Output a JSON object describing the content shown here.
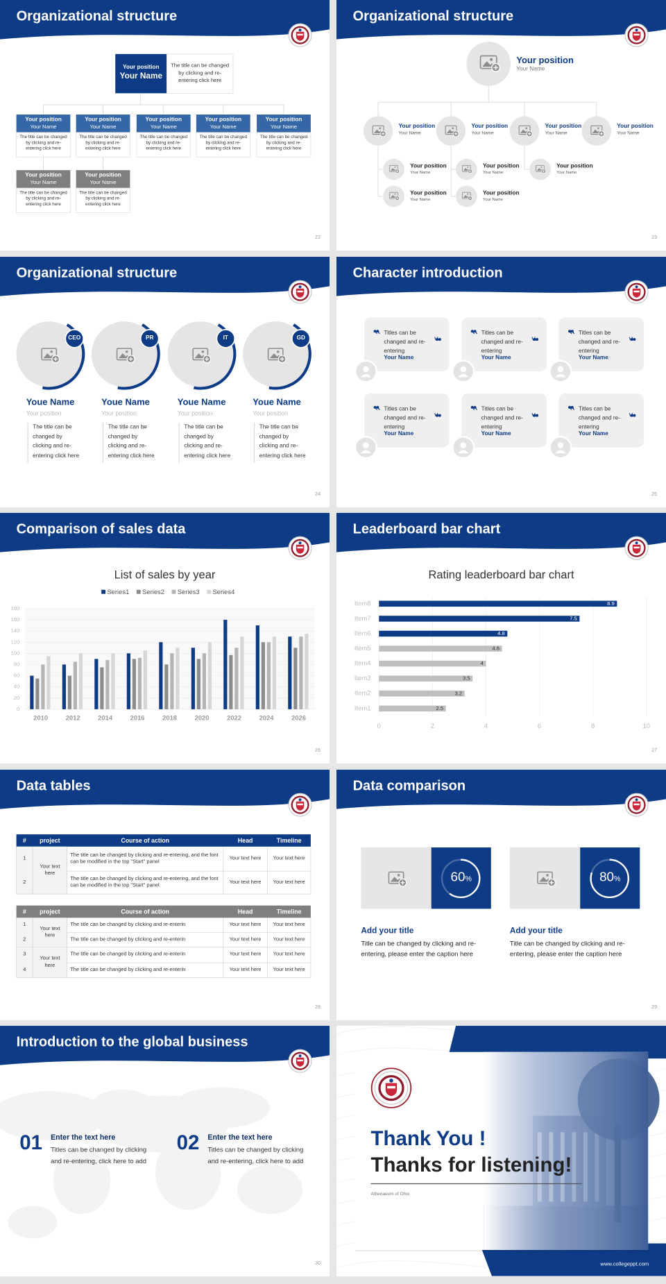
{
  "slides": [
    {
      "title": "Organizational structure",
      "page": "22",
      "head": {
        "position": "Your position",
        "name": "Your Name",
        "note": "The title can be changed by clicking and re-entering click here"
      },
      "members": [
        {
          "position": "Your position",
          "name": "Your Name",
          "text": "The title can be changed by clicking and re-entering click here"
        },
        {
          "position": "Your position",
          "name": "Your Name",
          "text": "The title can be changed by clicking and re-entering click here"
        },
        {
          "position": "Your position",
          "name": "Your Name",
          "text": "The title can be changed by clicking and re-entering click here"
        },
        {
          "position": "Your position",
          "name": "Your Name",
          "text": "The title can be changed by clicking and re-entering click here"
        },
        {
          "position": "Your position",
          "name": "Your Name",
          "text": "The title can be changed by clicking and re-entering click here"
        },
        {
          "position": "Your position",
          "name": "Your Name",
          "text": "The title can be changed by clicking and re-entering click here"
        },
        {
          "position": "Your position",
          "name": "Your Name",
          "text": "The title can be changed by clicking and re-entering click here"
        }
      ]
    },
    {
      "title": "Organizational structure",
      "page": "23",
      "head": {
        "position": "Your position",
        "name": "Your Name"
      },
      "branches": [
        {
          "position": "Your position",
          "name": "Your Name",
          "subs": [
            {
              "position": "Your position",
              "name": "Your Name"
            },
            {
              "position": "Your position",
              "name": "Your Name"
            }
          ]
        },
        {
          "position": "Your position",
          "name": "Your Name",
          "subs": [
            {
              "position": "Your position",
              "name": "Your Name"
            },
            {
              "position": "Your position",
              "name": "Your Name"
            }
          ]
        },
        {
          "position": "Your position",
          "name": "Your Name",
          "subs": [
            {
              "position": "Your position",
              "name": "Your Name"
            }
          ]
        },
        {
          "position": "Your position",
          "name": "Your Name"
        }
      ]
    },
    {
      "title": "Organizational structure",
      "page": "24",
      "people": [
        {
          "badge": "CEO",
          "name": "Youe Name",
          "position": "Your position",
          "text": "The title can be changed by clicking and re-entering click here"
        },
        {
          "badge": "PR",
          "name": "Youe Name",
          "position": "Your position",
          "text": "The title can be changed by clicking and re-entering click here"
        },
        {
          "badge": "IT",
          "name": "Youe Name",
          "position": "Your position",
          "text": "The title can be changed by clicking and re-entering click here"
        },
        {
          "badge": "GD",
          "name": "Youe Name",
          "position": "Your position",
          "text": "The title can be changed by clicking and re-entering click here"
        }
      ]
    },
    {
      "title": "Character introduction",
      "page": "25",
      "cards": [
        {
          "text": "Titles can be changed and re-entering",
          "name": "Your Name"
        },
        {
          "text": "Titles can be changed and re-entering",
          "name": "Your Name"
        },
        {
          "text": "Titles can be changed and re-entering",
          "name": "Your Name"
        },
        {
          "text": "Titles can be changed and re-entering",
          "name": "Your Name"
        },
        {
          "text": "Titles can be changed and re-entering",
          "name": "Your Name"
        },
        {
          "text": "Titles can be changed and re-entering",
          "name": "Your Name"
        }
      ]
    },
    {
      "title": "Comparison of sales data",
      "page": "26"
    },
    {
      "title": "Leaderboard bar chart",
      "page": "27"
    },
    {
      "title": "Data tables",
      "page": "28",
      "tables": [
        {
          "header": [
            "#",
            "project",
            "Course of action",
            "Head",
            "Timeline"
          ],
          "groups": [
            {
              "project": "Your text here",
              "rows": [
                {
                  "num": "1",
                  "course": "The title can be changed by clicking and re-entering, and the font can be modified in the top \"Start\" panel",
                  "head": "Your text here",
                  "timeline": "Your text here"
                },
                {
                  "num": "2",
                  "course": "The title can be changed by clicking and re-entering, and the font can be modified in the top \"Start\" panel",
                  "head": "Your text here",
                  "timeline": "Your text here"
                }
              ]
            }
          ]
        },
        {
          "header": [
            "#",
            "project",
            "Course of action",
            "Head",
            "Timeline"
          ],
          "groups": [
            {
              "project": "Your text here",
              "rows": [
                {
                  "num": "1",
                  "course": "The title can be changed by clicking and re-enterin",
                  "head": "Your text here",
                  "timeline": "Your text here"
                },
                {
                  "num": "2",
                  "course": "The title can be changed by clicking and re-enterin",
                  "head": "Your text here",
                  "timeline": "Your text here"
                }
              ]
            },
            {
              "project": "Your text here",
              "rows": [
                {
                  "num": "3",
                  "course": "The title can be changed by clicking and re-enterin",
                  "head": "Your text here",
                  "timeline": "Your text here"
                },
                {
                  "num": "4",
                  "course": "The title can be changed by clicking and re-enterin",
                  "head": "Your text here",
                  "timeline": "Your text here"
                }
              ]
            }
          ]
        }
      ]
    },
    {
      "title": "Data comparison",
      "page": "29",
      "items": [
        {
          "percent": 60,
          "unit": "%",
          "title": "Add your title",
          "text": "Title can be changed by clicking and re-entering, please enter the caption here"
        },
        {
          "percent": 80,
          "unit": "%",
          "title": "Add your title",
          "text": "Title can be changed by clicking and re-entering, please enter the caption here"
        }
      ]
    },
    {
      "title": "Introduction to the global business",
      "page": "30",
      "items": [
        {
          "number": "01",
          "title": "Enter the text here",
          "text": "Titles can be changed by clicking and re-entering, click here to add"
        },
        {
          "number": "02",
          "title": "Enter the text here",
          "text": "Titles can be changed by clicking and re-entering, click here to add"
        }
      ]
    },
    {
      "thanks": "Thank You !",
      "subtitle": "Thanks for listening!",
      "school": "Athenaeum of Ohio",
      "url": "www.collegeppt.com"
    }
  ],
  "chart_data": [
    {
      "type": "bar",
      "title": "List of sales by year",
      "categories": [
        "2010",
        "2012",
        "2014",
        "2016",
        "2018",
        "2020",
        "2022",
        "2024",
        "2026"
      ],
      "series": [
        {
          "name": "Series1",
          "color": "#0d3b86",
          "values": [
            60,
            80,
            90,
            100,
            120,
            110,
            160,
            150,
            130
          ]
        },
        {
          "name": "Series2",
          "color": "#8c8c8c",
          "values": [
            55,
            60,
            75,
            90,
            80,
            90,
            97,
            120,
            110
          ]
        },
        {
          "name": "Series3",
          "color": "#b4b4b4",
          "values": [
            80,
            85,
            88,
            92,
            100,
            100,
            110,
            120,
            130
          ]
        },
        {
          "name": "Series4",
          "color": "#d6d6d6",
          "values": [
            95,
            100,
            100,
            105,
            110,
            120,
            130,
            130,
            135
          ]
        }
      ],
      "ylim": [
        0,
        180
      ],
      "yticks": [
        0,
        20,
        40,
        60,
        80,
        100,
        120,
        140,
        160,
        180
      ],
      "grid": true
    },
    {
      "type": "barh",
      "title": "Rating leaderboard bar chart",
      "categories": [
        "Item8",
        "Item7",
        "Item6",
        "Item5",
        "Item4",
        "Item3",
        "Item2",
        "Item1"
      ],
      "values": [
        8.9,
        7.5,
        4.8,
        4.6,
        4,
        3.5,
        3.2,
        2.5
      ],
      "colors": [
        "#0d3b86",
        "#0d3b86",
        "#0d3b86",
        "#bfbfbf",
        "#bfbfbf",
        "#bfbfbf",
        "#bfbfbf",
        "#bfbfbf"
      ],
      "xlim": [
        0,
        10
      ],
      "xticks": [
        0,
        2,
        4,
        6,
        8,
        10
      ],
      "grid": true
    }
  ]
}
